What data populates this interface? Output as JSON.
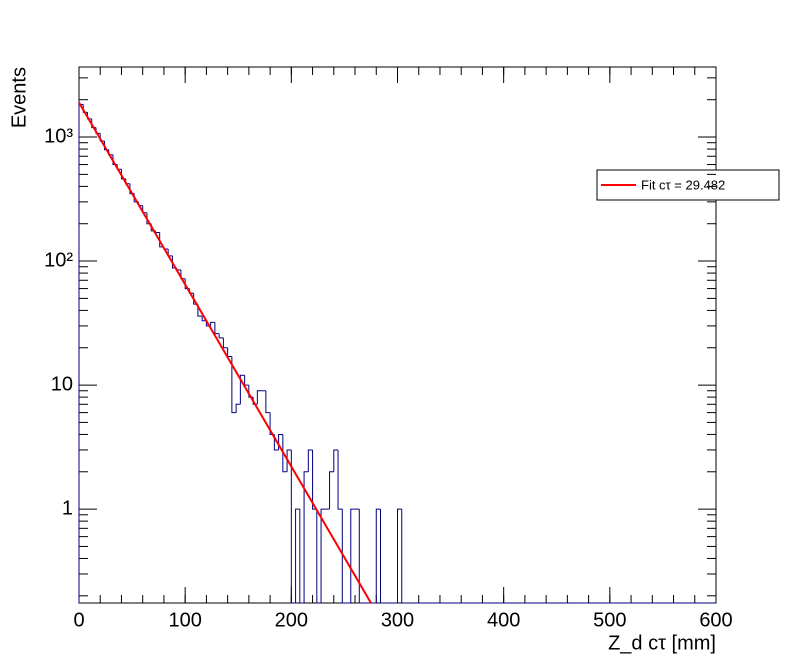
{
  "chart_data": {
    "type": "histogram",
    "xlabel": "Z_d cτ [mm]",
    "ylabel": "Events",
    "log_y": true,
    "xlim": [
      0,
      600
    ],
    "ylim": [
      0.175,
      3670
    ],
    "xticks": [
      0,
      100,
      200,
      300,
      400,
      500,
      600
    ],
    "yticks": [
      1,
      10,
      {
        "value": 100,
        "label": "10²"
      },
      {
        "value": 1000,
        "label": "10³"
      }
    ],
    "color": "#000080",
    "bins": [
      0,
      4,
      8,
      12,
      16,
      20,
      24,
      28,
      32,
      36,
      40,
      44,
      48,
      52,
      56,
      60,
      64,
      68,
      72,
      76,
      80,
      84,
      88,
      92,
      96,
      100,
      104,
      108,
      112,
      116,
      120,
      124,
      128,
      132,
      136,
      140,
      144,
      148,
      152,
      156,
      160,
      164,
      168,
      172,
      176,
      180,
      184,
      188,
      192,
      196,
      200,
      204,
      208,
      212,
      216,
      220,
      224,
      228,
      232,
      236,
      240,
      244,
      248,
      252,
      256,
      260,
      264,
      268,
      272,
      276,
      280,
      284,
      288,
      292,
      296,
      300,
      304,
      308,
      312,
      316,
      320,
      324,
      328,
      332,
      336,
      340,
      344,
      348,
      352,
      356,
      360,
      364,
      368,
      372,
      376,
      380,
      384,
      388,
      392,
      396,
      400,
      404,
      408,
      412,
      416,
      420,
      424,
      428,
      432,
      436,
      440,
      444,
      448,
      452,
      456,
      460,
      464,
      468,
      472,
      476,
      480,
      484,
      488,
      492,
      496,
      500,
      504,
      508,
      512,
      516,
      520,
      524,
      528,
      532,
      536,
      540,
      544,
      548,
      552,
      556,
      560,
      564,
      568,
      572,
      576,
      580,
      584,
      588,
      592,
      596,
      600
    ],
    "counts": [
      1830,
      1580,
      1400,
      1190,
      1070,
      930,
      790,
      720,
      600,
      550,
      460,
      420,
      350,
      300,
      280,
      245,
      200,
      175,
      170,
      130,
      125,
      110,
      88,
      85,
      72,
      60,
      55,
      45,
      36,
      33,
      30,
      32,
      26,
      24,
      20,
      17,
      6,
      7,
      12,
      10,
      8,
      7,
      9,
      9,
      6,
      4,
      3,
      4,
      2,
      3,
      0,
      1,
      0,
      2,
      3,
      1,
      0,
      1,
      1,
      2,
      3,
      1,
      0,
      0,
      1,
      1,
      0,
      0,
      0,
      0,
      1,
      0,
      0,
      0,
      0,
      1,
      0,
      0,
      0,
      0,
      0,
      0,
      0,
      0,
      0,
      0,
      0,
      0,
      0,
      0,
      0,
      0,
      0,
      0,
      0,
      0,
      0,
      0,
      0,
      0,
      0,
      0,
      0,
      0,
      0,
      0,
      0,
      0,
      0,
      0,
      0,
      0,
      0,
      0,
      0,
      0,
      0,
      0,
      0,
      0,
      0,
      0,
      0,
      0,
      0,
      0,
      0,
      0,
      0,
      0,
      0,
      0,
      0,
      0,
      0,
      0,
      0,
      0,
      0,
      0,
      0,
      0,
      0,
      0,
      0,
      0,
      0,
      0,
      0,
      0
    ],
    "fit": {
      "name": "Fit cτ = 29.482",
      "color": "#ff0000",
      "x": [
        0,
        275
      ],
      "values": [
        1900,
        0.175
      ]
    }
  }
}
